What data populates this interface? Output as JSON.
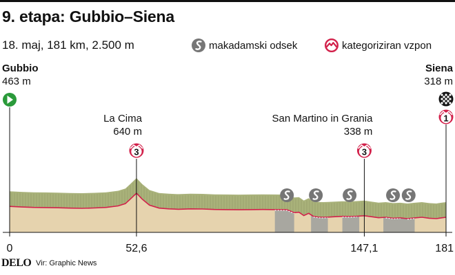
{
  "header": {
    "title": "9. etapa: Gubbio–Siena",
    "subtitle": "18. maj, 181 km, 2.500 m"
  },
  "legend": {
    "gravel_label": "makadamski odsek",
    "climb_label": "kategoriziran vzpon"
  },
  "start": {
    "name": "Gubbio",
    "elevation": "463 m"
  },
  "finish": {
    "name": "Siena",
    "elevation": "318 m",
    "category": "1"
  },
  "footer": {
    "brand": "DELO",
    "source": "Vir: Graphic News"
  },
  "colors": {
    "climb_marker": "#d2204a",
    "start_marker": "#2a9a3a",
    "profile_top": "#a9b27a",
    "profile_face": "#e6d3ae",
    "gravel": "#a8a7a0",
    "gravel_marker": "#767676"
  },
  "chart_data": {
    "type": "area",
    "title": "9. etapa: Gubbio–Siena",
    "xlabel": "",
    "ylabel": "",
    "x_unit": "km",
    "xlim": [
      0,
      181
    ],
    "ylim": [
      0,
      700
    ],
    "x_ticks": [
      {
        "value": 0,
        "label": "0"
      },
      {
        "value": 52.6,
        "label": "52,6"
      },
      {
        "value": 147.1,
        "label": "147,1"
      },
      {
        "value": 181,
        "label": "181"
      }
    ],
    "profile": {
      "x": [
        0,
        5,
        10,
        15,
        20,
        25,
        30,
        35,
        40,
        45,
        48,
        50,
        52.6,
        55,
        58,
        62,
        66,
        70,
        75,
        80,
        85,
        90,
        95,
        100,
        105,
        110,
        115,
        118,
        120,
        122,
        124,
        126,
        128,
        130,
        132,
        135,
        138,
        141,
        144,
        147.1,
        150,
        153,
        156,
        159,
        162,
        165,
        168,
        171,
        174,
        177,
        179,
        181
      ],
      "y": [
        463,
        455,
        450,
        448,
        445,
        440,
        438,
        442,
        450,
        470,
        500,
        560,
        640,
        560,
        480,
        440,
        430,
        425,
        430,
        428,
        422,
        420,
        418,
        420,
        422,
        420,
        418,
        380,
        385,
        340,
        370,
        330,
        320,
        318,
        320,
        325,
        330,
        328,
        332,
        338,
        325,
        312,
        318,
        305,
        310,
        300,
        310,
        318,
        305,
        300,
        310,
        318
      ]
    },
    "climbs": [
      {
        "name": "La Cima",
        "elevation_label": "640 m",
        "km": 52.6,
        "elevation": 640,
        "category": "3"
      },
      {
        "name": "San Martino in Grania",
        "elevation_label": "338 m",
        "km": 147.1,
        "elevation": 338,
        "category": "3"
      }
    ],
    "gravel_sections": [
      [
        110,
        118
      ],
      [
        125,
        132
      ],
      [
        138,
        145
      ],
      [
        155,
        163
      ],
      [
        163,
        168
      ]
    ],
    "gravel_markers_km": [
      115,
      127,
      141,
      159,
      165.5
    ]
  }
}
